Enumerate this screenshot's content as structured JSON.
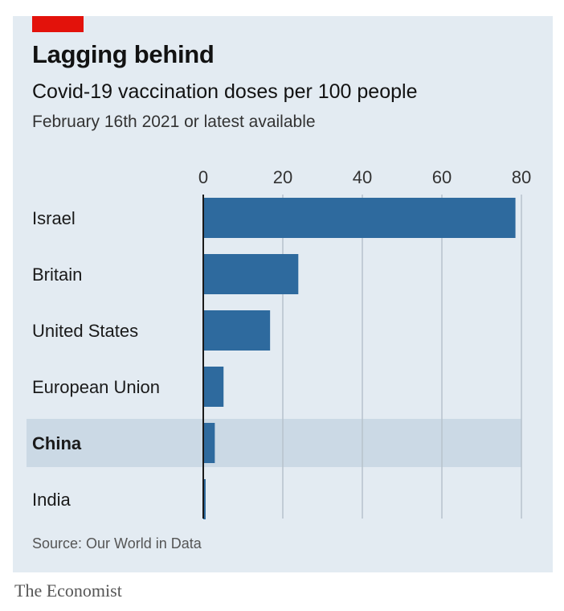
{
  "header": {
    "title": "Lagging behind",
    "subtitle": "Covid-19 vaccination doses per 100 people",
    "subtitle2": "February 16th 2021 or latest available"
  },
  "source": "Source: Our World in Data",
  "publisher": "The Economist",
  "colors": {
    "background": "#e3ebf2",
    "bar": "#2e6a9e",
    "highlight": "#cbd9e5",
    "grid": "#b8c2cc",
    "accent": "#e3120b"
  },
  "chart_data": {
    "type": "bar",
    "orientation": "horizontal",
    "categories": [
      "Israel",
      "Britain",
      "United States",
      "European Union",
      "China",
      "India"
    ],
    "values": [
      78.5,
      23.9,
      16.8,
      5.1,
      2.9,
      0.6
    ],
    "highlighted": "China",
    "xlim": [
      0,
      80
    ],
    "xticks": [
      "0",
      "20",
      "40",
      "60",
      "80"
    ],
    "tick_position": "top",
    "grid": true
  }
}
